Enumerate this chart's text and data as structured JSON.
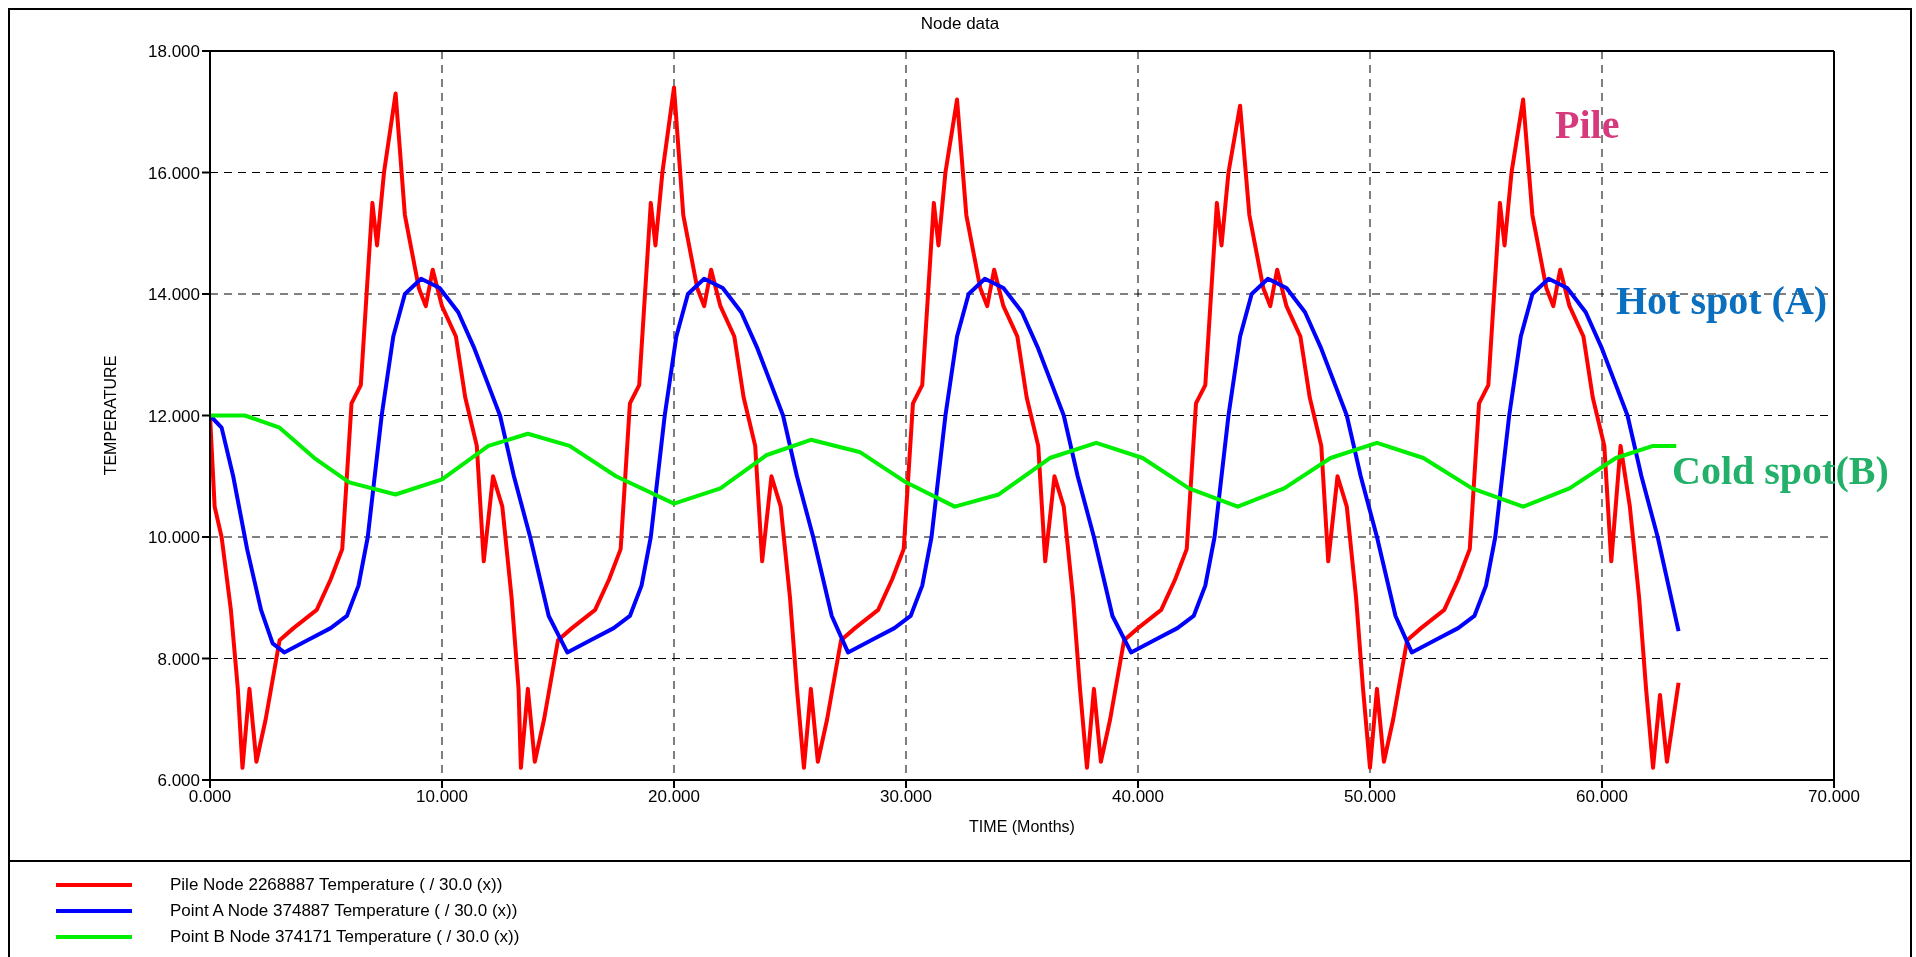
{
  "chart_data": {
    "type": "line",
    "title": "Node data",
    "xlabel": "TIME (Months)",
    "ylabel": "TEMPERATURE",
    "xlim": [
      0,
      70
    ],
    "ylim": [
      6,
      18
    ],
    "xticks": [
      {
        "value": 0,
        "label": "0.000"
      },
      {
        "value": 10,
        "label": "10.000"
      },
      {
        "value": 20,
        "label": "20.000"
      },
      {
        "value": 30,
        "label": "30.000"
      },
      {
        "value": 40,
        "label": "40.000"
      },
      {
        "value": 50,
        "label": "50.000"
      },
      {
        "value": 60,
        "label": "60.000"
      },
      {
        "value": 70,
        "label": "70.000"
      }
    ],
    "yticks": [
      {
        "value": 6,
        "label": "6.000"
      },
      {
        "value": 8,
        "label": "8.000"
      },
      {
        "value": 10,
        "label": "10.000"
      },
      {
        "value": 12,
        "label": "12.000"
      },
      {
        "value": 14,
        "label": "14.000"
      },
      {
        "value": 16,
        "label": "16.000"
      },
      {
        "value": 18,
        "label": "18.000"
      }
    ],
    "grid": true,
    "legend": "bottom",
    "marker": "none",
    "line_style": "solid",
    "series": [
      {
        "name": "Pile Node 2268887 Temperature ( / 30.0 (x))",
        "color": "#ff0000",
        "x": [
          0,
          0.2,
          0.5,
          0.9,
          1.2,
          1.4,
          1.7,
          2.0,
          2.4,
          3.0,
          3.6,
          4.6,
          5.2,
          5.7,
          6.1,
          6.5,
          7.0,
          7.2,
          7.5,
          8.0,
          8.4,
          9.0,
          9.3,
          9.6,
          10.0,
          10.6,
          11.0,
          11.5,
          11.8,
          12.2,
          12.6,
          13.0,
          13.3,
          13.4,
          13.7,
          14.0,
          14.4,
          15.0,
          15.6,
          16.6,
          17.2,
          17.7,
          18.1,
          18.5,
          19.0,
          19.2,
          19.5,
          20.0,
          20.4,
          21.0,
          21.3,
          21.6,
          22.0,
          22.6,
          23.0,
          23.5,
          23.8,
          24.2,
          24.6,
          25.0,
          25.3,
          25.6,
          25.9,
          26.2,
          26.6,
          27.2,
          27.8,
          28.8,
          29.4,
          29.9,
          30.3,
          30.7,
          31.2,
          31.4,
          31.7,
          32.2,
          32.6,
          33.2,
          33.5,
          33.8,
          34.2,
          34.8,
          35.2,
          35.7,
          36.0,
          36.4,
          36.8,
          37.2,
          37.5,
          37.8,
          38.1,
          38.4,
          38.8,
          39.4,
          40.0,
          41.0,
          41.6,
          42.1,
          42.5,
          42.9,
          43.4,
          43.6,
          43.9,
          44.4,
          44.8,
          45.4,
          45.7,
          46.0,
          46.4,
          47.0,
          47.4,
          47.9,
          48.2,
          48.6,
          49.0,
          49.4,
          49.7,
          50.0,
          50.3,
          50.6,
          51.0,
          51.6,
          52.2,
          53.2,
          53.8,
          54.3,
          54.7,
          55.1,
          55.6,
          55.8,
          56.1,
          56.6,
          57.0,
          57.6,
          57.9,
          58.2,
          58.6,
          59.2,
          59.6,
          60.1,
          60.4,
          60.8,
          61.2,
          61.6,
          61.9,
          62.2,
          62.5,
          62.8,
          63.3
        ],
        "values": [
          12.0,
          10.5,
          10.0,
          8.8,
          7.5,
          6.2,
          7.5,
          6.3,
          7.0,
          8.3,
          8.5,
          8.8,
          9.3,
          9.8,
          12.2,
          12.5,
          15.5,
          14.8,
          16.0,
          17.3,
          15.3,
          14.1,
          13.8,
          14.4,
          13.8,
          13.3,
          12.3,
          11.5,
          9.6,
          11.0,
          10.5,
          9.0,
          7.5,
          6.2,
          7.5,
          6.3,
          7.0,
          8.3,
          8.5,
          8.8,
          9.3,
          9.8,
          12.2,
          12.5,
          15.5,
          14.8,
          16.0,
          17.4,
          15.3,
          14.1,
          13.8,
          14.4,
          13.8,
          13.3,
          12.3,
          11.5,
          9.6,
          11.0,
          10.5,
          9.0,
          7.5,
          6.2,
          7.5,
          6.3,
          7.0,
          8.3,
          8.5,
          8.8,
          9.3,
          9.8,
          12.2,
          12.5,
          15.5,
          14.8,
          16.0,
          17.2,
          15.3,
          14.1,
          13.8,
          14.4,
          13.8,
          13.3,
          12.3,
          11.5,
          9.6,
          11.0,
          10.5,
          9.0,
          7.5,
          6.2,
          7.5,
          6.3,
          7.0,
          8.3,
          8.5,
          8.8,
          9.3,
          9.8,
          12.2,
          12.5,
          15.5,
          14.8,
          16.0,
          17.1,
          15.3,
          14.1,
          13.8,
          14.4,
          13.8,
          13.3,
          12.3,
          11.5,
          9.6,
          11.0,
          10.5,
          9.0,
          7.5,
          6.2,
          7.5,
          6.3,
          7.0,
          8.3,
          8.5,
          8.8,
          9.3,
          9.8,
          12.2,
          12.5,
          15.5,
          14.8,
          16.0,
          17.2,
          15.3,
          14.1,
          13.8,
          14.4,
          13.8,
          13.3,
          12.3,
          11.5,
          9.6,
          11.5,
          10.5,
          9.0,
          7.5,
          6.2,
          7.4,
          6.3,
          7.6
        ]
      },
      {
        "name": "Point A Node 374887 Temperature ( / 30.0 (x))",
        "color": "#0000ff",
        "x": [
          0,
          0.5,
          1.0,
          1.6,
          2.2,
          2.7,
          3.2,
          4.2,
          5.2,
          5.9,
          6.4,
          6.8,
          7.4,
          7.9,
          8.4,
          9.1,
          9.9,
          10.7,
          11.4,
          12.0,
          12.5,
          13.1,
          13.8,
          14.6,
          15.4,
          16.4,
          17.4,
          18.1,
          18.6,
          19.0,
          19.6,
          20.1,
          20.6,
          21.3,
          22.1,
          22.9,
          23.6,
          24.2,
          24.7,
          25.3,
          26.0,
          26.8,
          27.5,
          28.5,
          29.5,
          30.2,
          30.7,
          31.1,
          31.7,
          32.2,
          32.7,
          33.4,
          34.2,
          35.0,
          35.7,
          36.3,
          36.8,
          37.4,
          38.1,
          38.9,
          39.7,
          40.7,
          41.7,
          42.4,
          42.9,
          43.3,
          43.9,
          44.4,
          44.9,
          45.6,
          46.4,
          47.2,
          47.9,
          48.5,
          49.0,
          49.6,
          50.3,
          51.1,
          51.8,
          52.8,
          53.8,
          54.5,
          55.0,
          55.4,
          56.0,
          56.5,
          57.0,
          57.7,
          58.5,
          59.3,
          60.0,
          60.6,
          61.1,
          61.7,
          62.4,
          63.3
        ],
        "values": [
          12.0,
          11.8,
          11.0,
          9.8,
          8.8,
          8.25,
          8.1,
          8.3,
          8.5,
          8.7,
          9.2,
          10.0,
          12.0,
          13.3,
          14.0,
          14.25,
          14.1,
          13.7,
          13.1,
          12.5,
          12.0,
          11.0,
          10.0,
          8.7,
          8.1,
          8.3,
          8.5,
          8.7,
          9.2,
          10.0,
          12.0,
          13.3,
          14.0,
          14.25,
          14.1,
          13.7,
          13.1,
          12.5,
          12.0,
          11.0,
          10.0,
          8.7,
          8.1,
          8.3,
          8.5,
          8.7,
          9.2,
          10.0,
          12.0,
          13.3,
          14.0,
          14.25,
          14.1,
          13.7,
          13.1,
          12.5,
          12.0,
          11.0,
          10.0,
          8.7,
          8.1,
          8.3,
          8.5,
          8.7,
          9.2,
          10.0,
          12.0,
          13.3,
          14.0,
          14.25,
          14.1,
          13.7,
          13.1,
          12.5,
          12.0,
          11.0,
          10.0,
          8.7,
          8.1,
          8.3,
          8.5,
          8.7,
          9.2,
          10.0,
          12.0,
          13.3,
          14.0,
          14.25,
          14.1,
          13.7,
          13.1,
          12.5,
          12.0,
          11.0,
          10.0,
          8.45
        ]
      },
      {
        "name": "Point B Node 374171 Temperature ( / 30.0 (x))",
        "color": "#00ee00",
        "x": [
          0,
          1.5,
          3,
          4.5,
          6,
          8,
          10,
          12,
          13.7,
          15.5,
          17.5,
          20,
          22,
          24,
          25.9,
          28,
          30,
          32.1,
          34,
          36.2,
          38.2,
          40.2,
          42.2,
          44.3,
          46.3,
          48.3,
          50.3,
          52.3,
          54.4,
          56.6,
          58.6,
          60.6,
          62.2,
          63.2
        ],
        "values": [
          12.0,
          12.0,
          11.8,
          11.3,
          10.9,
          10.7,
          10.95,
          11.5,
          11.7,
          11.5,
          11.0,
          10.55,
          10.8,
          11.35,
          11.6,
          11.4,
          10.9,
          10.5,
          10.7,
          11.3,
          11.55,
          11.3,
          10.8,
          10.5,
          10.8,
          11.3,
          11.55,
          11.3,
          10.8,
          10.5,
          10.8,
          11.3,
          11.5,
          11.5
        ]
      }
    ],
    "annotations": [
      "Pile",
      "Hot spot (A)",
      "Cold spot(B)"
    ]
  }
}
